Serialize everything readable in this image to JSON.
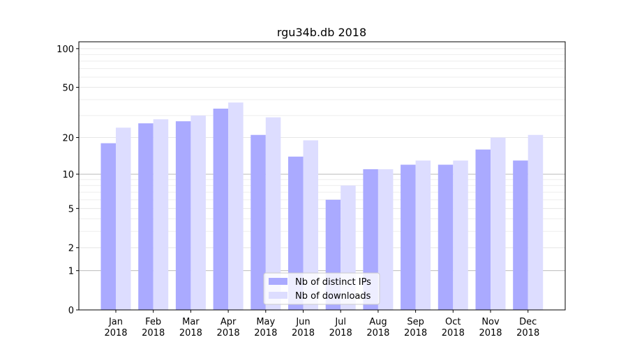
{
  "chart_data": {
    "type": "bar",
    "title": "rgu34b.db 2018",
    "xlabel": "",
    "ylabel": "",
    "yscale": "log(1+x)",
    "ylim": [
      0,
      113
    ],
    "yticks": [
      0,
      1,
      2,
      5,
      10,
      20,
      50,
      100
    ],
    "grid": true,
    "legend_position": "lower-center",
    "categories": [
      "Jan\n2018",
      "Feb\n2018",
      "Mar\n2018",
      "Apr\n2018",
      "May\n2018",
      "Jun\n2018",
      "Jul\n2018",
      "Aug\n2018",
      "Sep\n2018",
      "Oct\n2018",
      "Nov\n2018",
      "Dec\n2018"
    ],
    "series": [
      {
        "name": "Nb of distinct IPs",
        "color": "#aaaaff",
        "values": [
          18,
          26,
          27,
          34,
          21,
          14,
          6,
          11,
          12,
          12,
          16,
          13
        ]
      },
      {
        "name": "Nb of downloads",
        "color": "#ddddff",
        "values": [
          24,
          28,
          30,
          38,
          29,
          19,
          8,
          11,
          13,
          13,
          20,
          21
        ]
      }
    ]
  }
}
